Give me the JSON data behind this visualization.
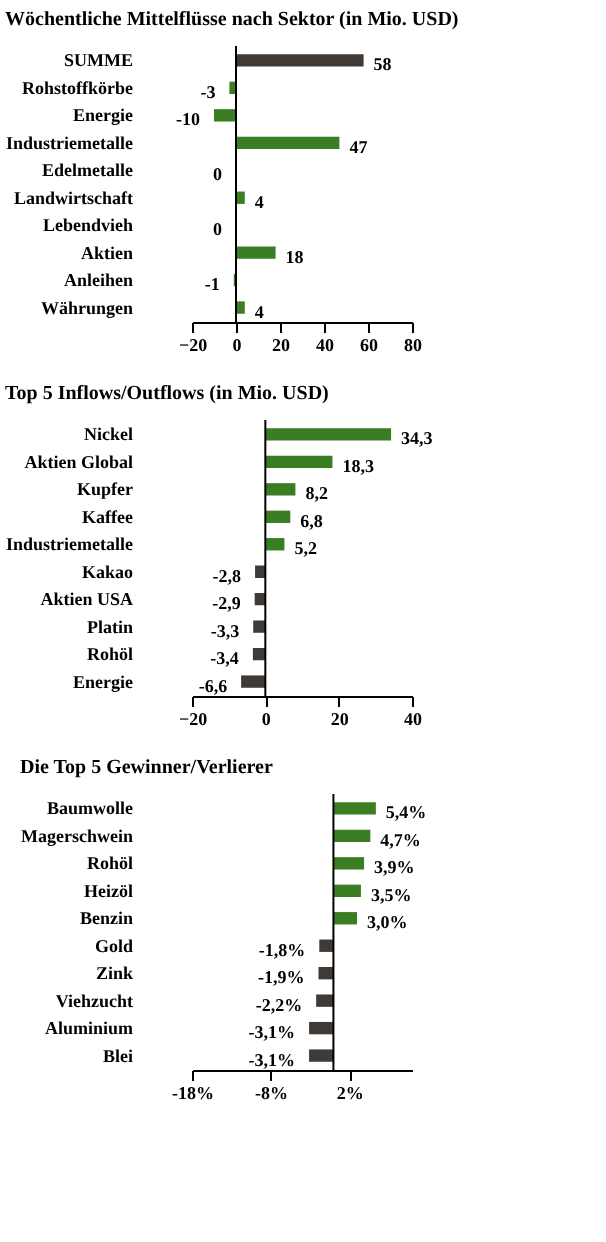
{
  "chart_data": [
    {
      "type": "bar",
      "orientation": "horizontal",
      "title": "Wöchentliche Mittelflüsse nach Sektor (in Mio. USD)",
      "categories": [
        "SUMME",
        "Rohstoffkörbe",
        "Energie",
        "Industriemetalle",
        "Edelmetalle",
        "Landwirtschaft",
        "Lebendvieh",
        "Aktien",
        "Anleihen",
        "Währungen"
      ],
      "values": [
        58,
        -3,
        -10,
        47,
        0,
        4,
        0,
        18,
        -1,
        4
      ],
      "colors": [
        "#3f3a36",
        "#3a7d23",
        "#3a7d23",
        "#3a7d23",
        "#3a7d23",
        "#3a7d23",
        "#3a7d23",
        "#3a7d23",
        "#3a7d23",
        "#3a7d23"
      ],
      "data_labels": true,
      "xlim": [
        -20,
        80
      ],
      "xticks": [
        -20,
        0,
        20,
        40,
        60,
        80
      ],
      "grid": false,
      "ref_lines": [
        {
          "axis": "x",
          "value": 0,
          "color": "#000000"
        }
      ]
    },
    {
      "type": "bar",
      "orientation": "horizontal",
      "title": "Top 5 Inflows/Outflows (in Mio. USD)",
      "categories": [
        "Nickel",
        "Aktien Global",
        "Kupfer",
        "Kaffee",
        "Industriemetalle",
        "Kakao",
        "Aktien USA",
        "Platin",
        "Rohöl",
        "Energie"
      ],
      "values": [
        34.3,
        18.3,
        8.2,
        6.8,
        5.2,
        -2.8,
        -2.9,
        -3.3,
        -3.4,
        -6.6
      ],
      "value_labels": [
        "34,3",
        "18,3",
        "8,2",
        "6,8",
        "5,2",
        "-2,8",
        "-2,9",
        "-3,3",
        "-3,4",
        "-6,6"
      ],
      "colors": [
        "#3a7d23",
        "#3a7d23",
        "#3a7d23",
        "#3a7d23",
        "#3a7d23",
        "#3f3a36",
        "#3f3a36",
        "#3f3a36",
        "#3f3a36",
        "#3f3a36"
      ],
      "xlim": [
        -20,
        40
      ],
      "xticks": [
        -20,
        0,
        20,
        40
      ],
      "grid": false,
      "ref_lines": [
        {
          "axis": "x",
          "value": 0,
          "color": "#000000"
        }
      ]
    },
    {
      "type": "bar",
      "orientation": "horizontal",
      "title": "Die Top 5 Gewinner/Verlierer",
      "categories": [
        "Baumwolle",
        "Magerschwein",
        "Rohöl",
        "Heizöl",
        "Benzin",
        "Gold",
        "Zink",
        "Viehzucht",
        "Aluminium",
        "Blei"
      ],
      "values": [
        5.4,
        4.7,
        3.9,
        3.5,
        3.0,
        -1.8,
        -1.9,
        -2.2,
        -3.1,
        -3.1
      ],
      "value_labels": [
        "5,4%",
        "4,7%",
        "3,9%",
        "3,5%",
        "3,0%",
        "-1,8%",
        "-1,9%",
        "-2,2%",
        "-3,1%",
        "-3,1%"
      ],
      "colors": [
        "#3a7d23",
        "#3a7d23",
        "#3a7d23",
        "#3a7d23",
        "#3a7d23",
        "#3f3a36",
        "#3f3a36",
        "#3f3a36",
        "#3f3a36",
        "#3f3a36"
      ],
      "xlim": [
        -18,
        10
      ],
      "xticks": [
        {
          "value": -18,
          "label": "-18%"
        },
        {
          "value": -8,
          "label": "-8%"
        },
        {
          "value": 2,
          "label": "2%"
        }
      ],
      "grid": false,
      "ref_lines": [
        {
          "axis": "x",
          "value": 0,
          "color": "#000000"
        }
      ]
    }
  ]
}
